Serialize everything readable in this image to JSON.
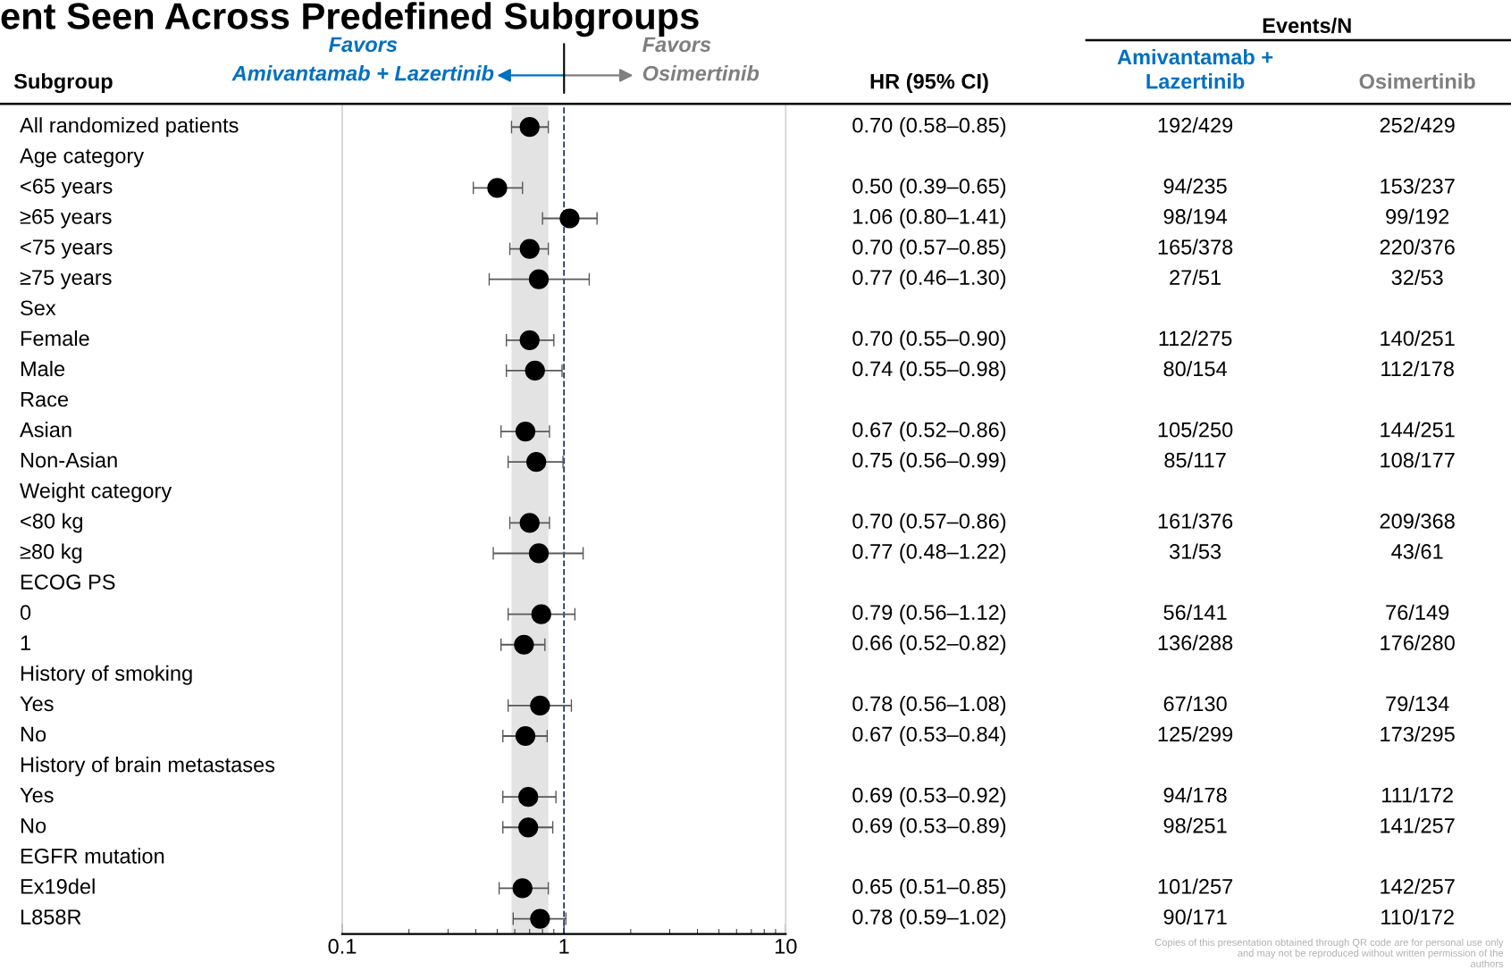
{
  "chart_data": {
    "type": "scatter",
    "title": "ent Seen Across Predefined Subgroups",
    "categories": [
      "All randomized patients",
      "Age category",
      "<65 years",
      "≥65 years",
      "<75 years",
      "≥75 years",
      "Sex",
      "Female",
      "Male",
      "Race",
      "Asian",
      "Non-Asian",
      "Weight category",
      "<80 kg",
      "≥80 kg",
      "ECOG PS",
      "0",
      "1",
      "History of smoking",
      "Yes",
      "No",
      "History of brain metastases",
      "Yes",
      "No",
      "EGFR mutation",
      "Ex19del",
      "L858R"
    ],
    "values": [
      0.7,
      null,
      0.5,
      1.06,
      0.7,
      0.77,
      null,
      0.7,
      0.74,
      null,
      0.67,
      0.75,
      null,
      0.7,
      0.77,
      null,
      0.79,
      0.66,
      null,
      0.78,
      0.67,
      null,
      0.69,
      0.69,
      null,
      0.65,
      0.78
    ],
    "errors": [
      [
        0.58,
        0.85
      ],
      null,
      [
        0.39,
        0.65
      ],
      [
        0.8,
        1.41
      ],
      [
        0.57,
        0.85
      ],
      [
        0.46,
        1.3
      ],
      null,
      [
        0.55,
        0.9
      ],
      [
        0.55,
        0.98
      ],
      null,
      [
        0.52,
        0.86
      ],
      [
        0.56,
        0.99
      ],
      null,
      [
        0.57,
        0.86
      ],
      [
        0.48,
        1.22
      ],
      null,
      [
        0.56,
        1.12
      ],
      [
        0.52,
        0.82
      ],
      null,
      [
        0.56,
        1.08
      ],
      [
        0.53,
        0.84
      ],
      null,
      [
        0.53,
        0.92
      ],
      [
        0.53,
        0.89
      ],
      null,
      [
        0.51,
        0.85
      ],
      [
        0.59,
        1.02
      ]
    ],
    "value_labels": [
      "0.70 (0.58–0.85)",
      null,
      "0.50 (0.39–0.65)",
      "1.06 (0.80–1.41)",
      "0.70 (0.57–0.85)",
      "0.77 (0.46–1.30)",
      null,
      "0.70 (0.55–0.90)",
      "0.74 (0.55–0.98)",
      null,
      "0.67 (0.52–0.86)",
      "0.75 (0.56–0.99)",
      null,
      "0.70 (0.57–0.86)",
      "0.77 (0.48–1.22)",
      null,
      "0.79 (0.56–1.12)",
      "0.66 (0.52–0.82)",
      null,
      "0.78 (0.56–1.08)",
      "0.67 (0.53–0.84)",
      null,
      "0.69 (0.53–0.92)",
      "0.69 (0.53–0.89)",
      null,
      "0.65 (0.51–0.85)",
      "0.78 (0.59–1.02)"
    ],
    "color": "#000000",
    "marker": "circle",
    "log": "x",
    "orientation": "horizontal",
    "xlim": [
      0.1,
      10
    ],
    "xticks": [
      {
        "value": 0.1,
        "label": "0.1"
      },
      {
        "value": 1,
        "label": "1"
      },
      {
        "value": 10,
        "label": "10"
      }
    ],
    "tick_labels": "x",
    "ref_lines": [
      {
        "axis": "x",
        "value": 1,
        "color": "#1f3864",
        "line_style": "dashed"
      }
    ],
    "bands": [
      {
        "axis": "x",
        "from": 0.58,
        "to": 0.85,
        "color": "#e3e3e3"
      }
    ],
    "annotations": [
      "Subgroup",
      "Favors\nAmivantamab + Lazertinib",
      "Favors\nOsimertinib",
      "HR (95% CI)",
      "Events/N",
      "Amivantamab +\nLazertinib",
      "Osimertinib",
      "Copies of this presentation obtained through QR code are for personal use only\nand may not be reproduced without written permission of the\nauthors",
      "192/429",
      "252/429",
      "94/235",
      "153/237",
      "98/194",
      "99/192",
      "165/378",
      "220/376",
      "27/51",
      "32/53",
      "112/275",
      "140/251",
      "80/154",
      "112/178",
      "105/250",
      "144/251",
      "85/117",
      "108/177",
      "161/376",
      "209/368",
      "31/53",
      "43/61",
      "56/141",
      "76/149",
      "136/288",
      "176/280",
      "67/130",
      "79/134",
      "125/299",
      "173/295",
      "94/178",
      "111/172",
      "98/251",
      "141/257",
      "101/257",
      "142/257",
      "90/171",
      "110/172"
    ]
  }
}
